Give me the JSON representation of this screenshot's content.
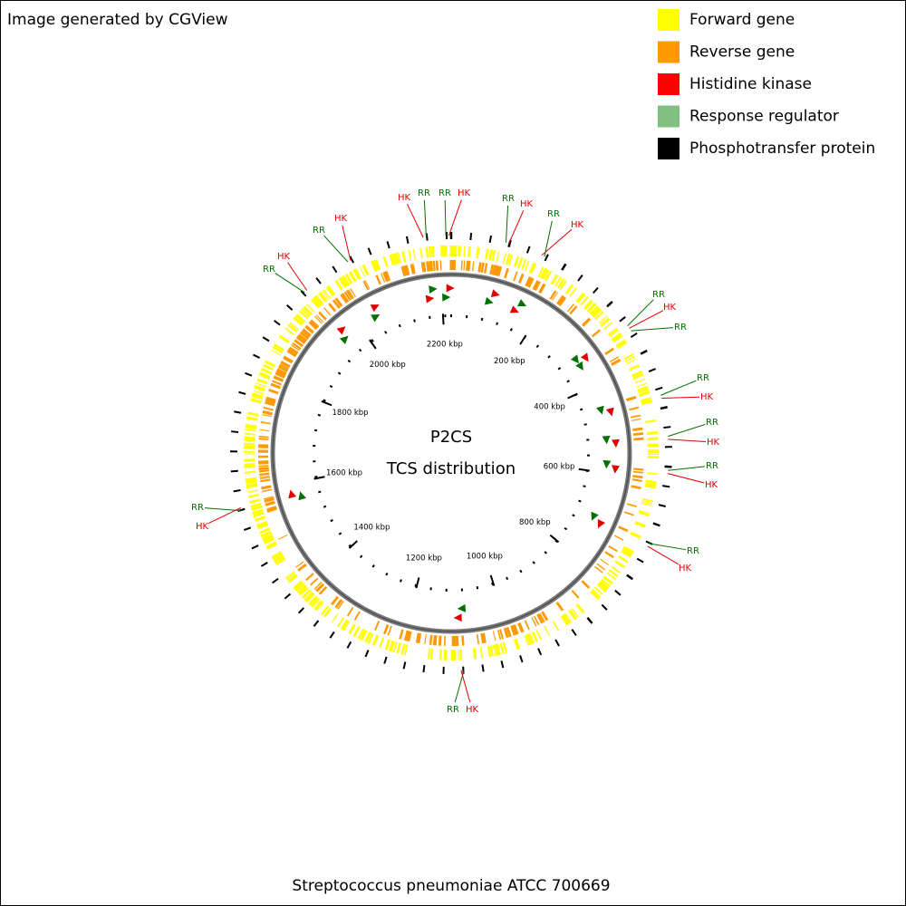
{
  "header": {
    "credit": "Image generated by CGView"
  },
  "legend": [
    {
      "label": "Forward gene",
      "color": "#ffff00"
    },
    {
      "label": "Reverse gene",
      "color": "#ff9900"
    },
    {
      "label": "Histidine kinase",
      "color": "#ff0000"
    },
    {
      "label": "Response regulator",
      "color": "#80c080"
    },
    {
      "label": "Phosphotransfer protein",
      "color": "#000000"
    }
  ],
  "center": {
    "line1": "P2CS",
    "line2": "TCS distribution"
  },
  "scale_labels": [
    "200 kbp",
    "400 kbp",
    "600 kbp",
    "800 kbp",
    "1000 kbp",
    "1200 kbp",
    "1400 kbp",
    "1600 kbp",
    "1800 kbp",
    "2000 kbp",
    "2200 kbp"
  ],
  "callouts": [
    [
      {
        "text": "HK",
        "color": "#e00000"
      },
      {
        "text": "RR",
        "color": "#007000"
      }
    ],
    [
      {
        "text": "RR",
        "color": "#007000"
      },
      {
        "text": "HK",
        "color": "#e00000"
      }
    ],
    [
      {
        "text": "RR",
        "color": "#007000"
      },
      {
        "text": "HK",
        "color": "#e00000"
      }
    ],
    [
      {
        "text": "HK",
        "color": "#e00000"
      },
      {
        "text": "RR",
        "color": "#007000"
      }
    ],
    [
      {
        "text": "RR",
        "color": "#007000"
      },
      {
        "text": "HK",
        "color": "#e00000"
      },
      {
        "text": "RR",
        "color": "#007000"
      }
    ],
    [
      {
        "text": "RR",
        "color": "#007000"
      },
      {
        "text": "HK",
        "color": "#e00000"
      }
    ],
    [
      {
        "text": "RR",
        "color": "#007000"
      },
      {
        "text": "HK",
        "color": "#e00000"
      }
    ],
    [
      {
        "text": "RR",
        "color": "#007000"
      },
      {
        "text": "HK",
        "color": "#e00000"
      }
    ],
    [
      {
        "text": "RR",
        "color": "#007000"
      },
      {
        "text": "HK",
        "color": "#e00000"
      }
    ],
    [
      {
        "text": "RR",
        "color": "#007000"
      },
      {
        "text": "HK",
        "color": "#e00000"
      }
    ],
    [
      {
        "text": "RR",
        "color": "#007000"
      },
      {
        "text": "HK",
        "color": "#e00000"
      }
    ],
    [
      {
        "text": "RR",
        "color": "#007000"
      },
      {
        "text": "HK",
        "color": "#e00000"
      }
    ],
    [
      {
        "text": "RR",
        "color": "#007000"
      },
      {
        "text": "HK",
        "color": "#e00000"
      }
    ]
  ],
  "footer": {
    "organism": "Streptococcus pneumoniae ATCC 700669"
  }
}
